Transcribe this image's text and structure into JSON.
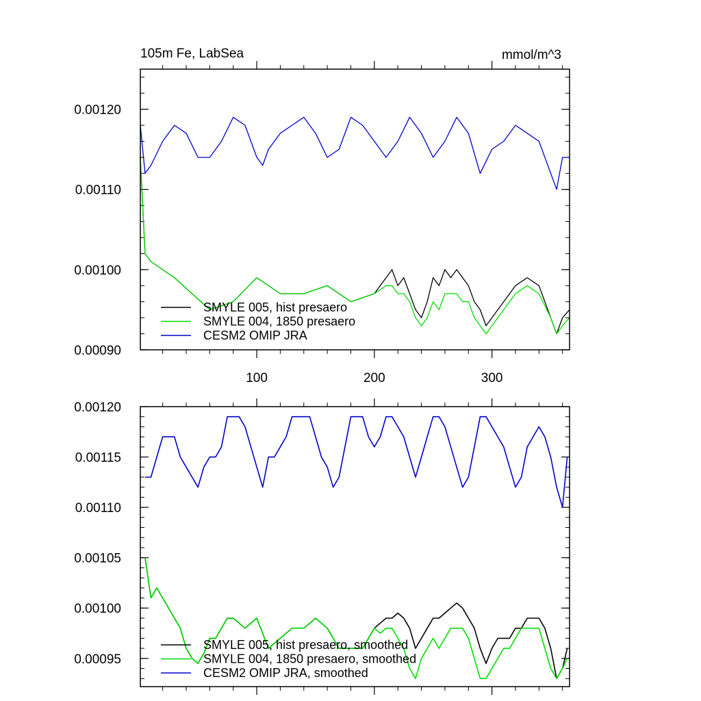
{
  "chart_data": [
    {
      "type": "line",
      "title": "105m Fe, LabSea",
      "units": "mmol/m^3",
      "xlim": [
        1,
        366
      ],
      "ylim": [
        0.0009,
        0.00125
      ],
      "x_ticks": [
        100,
        200,
        300
      ],
      "x_tick_labels": [
        "100",
        "200",
        "300"
      ],
      "y_ticks": [
        0.0009,
        0.001,
        0.0011,
        0.0012
      ],
      "y_tick_labels": [
        "0.00090",
        "0.00100",
        "0.00110",
        "0.00120"
      ],
      "legend_position": "bottom-left",
      "legend": [
        "SMYLE 005, hist presaero",
        "SMYLE 004, 1850 presaero",
        "CESM2 OMIP JRA"
      ],
      "series": [
        {
          "name": "SMYLE 005, hist presaero",
          "color": "#000000",
          "x": [
            1,
            5,
            10,
            20,
            30,
            45,
            60,
            80,
            100,
            120,
            140,
            160,
            180,
            200,
            210,
            215,
            220,
            225,
            230,
            235,
            240,
            245,
            250,
            255,
            260,
            265,
            270,
            275,
            280,
            285,
            290,
            295,
            300,
            310,
            320,
            330,
            340,
            350,
            355,
            360,
            366
          ],
          "y": [
            0.00114,
            0.00102,
            0.00101,
            0.001,
            0.00099,
            0.00097,
            0.00095,
            0.00096,
            0.00099,
            0.00097,
            0.00097,
            0.00098,
            0.00096,
            0.00097,
            0.00099,
            0.001,
            0.00098,
            0.00099,
            0.00097,
            0.00095,
            0.00094,
            0.00096,
            0.00099,
            0.00098,
            0.001,
            0.00099,
            0.001,
            0.00099,
            0.00098,
            0.00096,
            0.00095,
            0.00093,
            0.00094,
            0.00096,
            0.00098,
            0.00099,
            0.00098,
            0.00094,
            0.00092,
            0.00094,
            0.00095
          ]
        },
        {
          "name": "SMYLE 004, 1850 presaero",
          "color": "#00dd00",
          "x": [
            1,
            5,
            10,
            20,
            30,
            45,
            60,
            80,
            100,
            120,
            140,
            160,
            180,
            200,
            210,
            215,
            220,
            225,
            230,
            235,
            240,
            245,
            250,
            255,
            260,
            265,
            270,
            275,
            280,
            285,
            290,
            295,
            300,
            310,
            320,
            330,
            340,
            350,
            355,
            360,
            366
          ],
          "y": [
            0.00114,
            0.00102,
            0.00101,
            0.001,
            0.00099,
            0.00097,
            0.00095,
            0.00096,
            0.00099,
            0.00097,
            0.00097,
            0.00098,
            0.00096,
            0.00097,
            0.00098,
            0.00098,
            0.00097,
            0.00097,
            0.00096,
            0.00094,
            0.00093,
            0.00094,
            0.00096,
            0.00095,
            0.00097,
            0.00097,
            0.00097,
            0.00096,
            0.00096,
            0.00094,
            0.00093,
            0.00092,
            0.00093,
            0.00095,
            0.00097,
            0.00098,
            0.00097,
            0.00094,
            0.00092,
            0.00093,
            0.00094
          ]
        },
        {
          "name": "CESM2 OMIP JRA",
          "color": "#0000cc",
          "x": [
            1,
            5,
            10,
            20,
            30,
            40,
            50,
            60,
            70,
            80,
            90,
            100,
            105,
            110,
            120,
            130,
            140,
            150,
            160,
            170,
            180,
            190,
            200,
            210,
            220,
            230,
            240,
            250,
            260,
            270,
            280,
            290,
            300,
            310,
            320,
            330,
            340,
            350,
            355,
            360,
            366
          ],
          "y": [
            0.00118,
            0.00112,
            0.00113,
            0.00116,
            0.00118,
            0.00117,
            0.00114,
            0.00114,
            0.00116,
            0.00119,
            0.00118,
            0.00114,
            0.00113,
            0.00115,
            0.00117,
            0.00118,
            0.00119,
            0.00117,
            0.00114,
            0.00115,
            0.00119,
            0.00118,
            0.00116,
            0.00114,
            0.00116,
            0.00119,
            0.00117,
            0.00114,
            0.00116,
            0.00119,
            0.00117,
            0.00112,
            0.00115,
            0.00116,
            0.00118,
            0.00117,
            0.00116,
            0.00112,
            0.0011,
            0.00114,
            0.00114
          ]
        }
      ]
    },
    {
      "type": "line",
      "xlim": [
        1,
        366
      ],
      "ylim": [
        0.000922,
        0.0012
      ],
      "x_ticks": [
        100,
        200,
        300
      ],
      "y_ticks": [
        0.00095,
        0.001,
        0.00105,
        0.0011,
        0.00115,
        0.0012
      ],
      "y_tick_labels": [
        "0.00095",
        "0.00100",
        "0.00105",
        "0.00110",
        "0.00115",
        "0.00120"
      ],
      "legend_position": "bottom-left",
      "legend": [
        "SMYLE 005, hist presaero, smoothed",
        "SMYLE 004, 1850 presaero, smoothed",
        "CESM2 OMIP JRA, smoothed"
      ],
      "series": [
        {
          "name": "SMYLE 005, hist presaero, smoothed",
          "color": "#000000",
          "x": [
            5,
            10,
            15,
            20,
            25,
            30,
            35,
            40,
            45,
            50,
            55,
            60,
            65,
            70,
            75,
            80,
            90,
            100,
            110,
            120,
            130,
            140,
            150,
            160,
            170,
            180,
            190,
            200,
            205,
            210,
            215,
            220,
            225,
            230,
            235,
            240,
            245,
            250,
            255,
            260,
            265,
            270,
            275,
            280,
            285,
            290,
            295,
            300,
            305,
            310,
            315,
            320,
            325,
            330,
            335,
            340,
            345,
            350,
            355,
            360,
            364
          ],
          "y": [
            0.00105,
            0.00101,
            0.00102,
            0.00101,
            0.001,
            0.00099,
            0.00098,
            0.00096,
            0.00095,
            0.000945,
            0.000955,
            0.00097,
            0.00097,
            0.00098,
            0.00099,
            0.00099,
            0.00098,
            0.00099,
            0.00096,
            0.00097,
            0.00098,
            0.00098,
            0.00099,
            0.00098,
            0.00096,
            0.00096,
            0.00096,
            0.00098,
            0.000985,
            0.00099,
            0.00099,
            0.000995,
            0.00099,
            0.00098,
            0.00096,
            0.00097,
            0.00098,
            0.00099,
            0.00099,
            0.000995,
            0.001,
            0.001005,
            0.001,
            0.00099,
            0.00098,
            0.00096,
            0.000945,
            0.00096,
            0.00097,
            0.00097,
            0.00097,
            0.00098,
            0.00098,
            0.00099,
            0.00099,
            0.00099,
            0.00098,
            0.00096,
            0.00093,
            0.00094,
            0.00096
          ]
        },
        {
          "name": "SMYLE 004, 1850 presaero, smoothed",
          "color": "#00dd00",
          "x": [
            5,
            10,
            15,
            20,
            25,
            30,
            35,
            40,
            45,
            50,
            55,
            60,
            65,
            70,
            75,
            80,
            90,
            100,
            110,
            120,
            130,
            140,
            150,
            160,
            170,
            180,
            190,
            200,
            205,
            210,
            215,
            220,
            225,
            230,
            235,
            240,
            245,
            250,
            255,
            260,
            265,
            270,
            275,
            280,
            285,
            290,
            295,
            300,
            305,
            310,
            315,
            320,
            325,
            330,
            335,
            340,
            345,
            350,
            355,
            360,
            364
          ],
          "y": [
            0.00105,
            0.00101,
            0.00102,
            0.00101,
            0.001,
            0.00099,
            0.00098,
            0.00096,
            0.00095,
            0.000945,
            0.000955,
            0.00097,
            0.00097,
            0.00098,
            0.00099,
            0.00099,
            0.00098,
            0.00099,
            0.00096,
            0.00097,
            0.00098,
            0.00098,
            0.00099,
            0.00098,
            0.00096,
            0.00096,
            0.00096,
            0.00098,
            0.000975,
            0.00098,
            0.00098,
            0.00097,
            0.00096,
            0.00094,
            0.00093,
            0.00095,
            0.00096,
            0.00097,
            0.00096,
            0.00097,
            0.00098,
            0.00098,
            0.00098,
            0.00097,
            0.00095,
            0.00093,
            0.00093,
            0.00094,
            0.00095,
            0.00096,
            0.00096,
            0.00097,
            0.00098,
            0.00098,
            0.00098,
            0.00098,
            0.00096,
            0.00094,
            0.00093,
            0.00094,
            0.00095
          ]
        },
        {
          "name": "CESM2 OMIP JRA, smoothed",
          "color": "#0000cc",
          "x": [
            5,
            10,
            15,
            20,
            25,
            30,
            35,
            40,
            45,
            50,
            55,
            60,
            65,
            70,
            75,
            80,
            85,
            90,
            95,
            100,
            105,
            110,
            115,
            120,
            125,
            130,
            135,
            140,
            145,
            150,
            155,
            160,
            165,
            170,
            175,
            180,
            185,
            190,
            195,
            200,
            205,
            210,
            215,
            220,
            225,
            230,
            235,
            240,
            245,
            250,
            255,
            260,
            265,
            270,
            275,
            280,
            285,
            290,
            295,
            300,
            305,
            310,
            315,
            320,
            325,
            330,
            335,
            340,
            345,
            350,
            355,
            360,
            364
          ],
          "y": [
            0.00113,
            0.00113,
            0.00115,
            0.00117,
            0.00117,
            0.00117,
            0.00115,
            0.00114,
            0.00113,
            0.00112,
            0.00114,
            0.00115,
            0.00115,
            0.00116,
            0.00119,
            0.00119,
            0.00119,
            0.00118,
            0.00116,
            0.00114,
            0.00112,
            0.00115,
            0.00115,
            0.00116,
            0.00117,
            0.00119,
            0.00119,
            0.00119,
            0.00119,
            0.00117,
            0.00115,
            0.00114,
            0.00112,
            0.00113,
            0.00116,
            0.00119,
            0.00119,
            0.00119,
            0.00117,
            0.00116,
            0.00117,
            0.00119,
            0.00119,
            0.00118,
            0.00117,
            0.00115,
            0.00113,
            0.00115,
            0.00117,
            0.00119,
            0.00119,
            0.00118,
            0.00116,
            0.00114,
            0.00112,
            0.00113,
            0.00116,
            0.00119,
            0.00119,
            0.00118,
            0.00117,
            0.00116,
            0.00114,
            0.00112,
            0.00113,
            0.00116,
            0.00117,
            0.00118,
            0.00117,
            0.00115,
            0.00112,
            0.0011,
            0.00115
          ]
        }
      ]
    }
  ]
}
